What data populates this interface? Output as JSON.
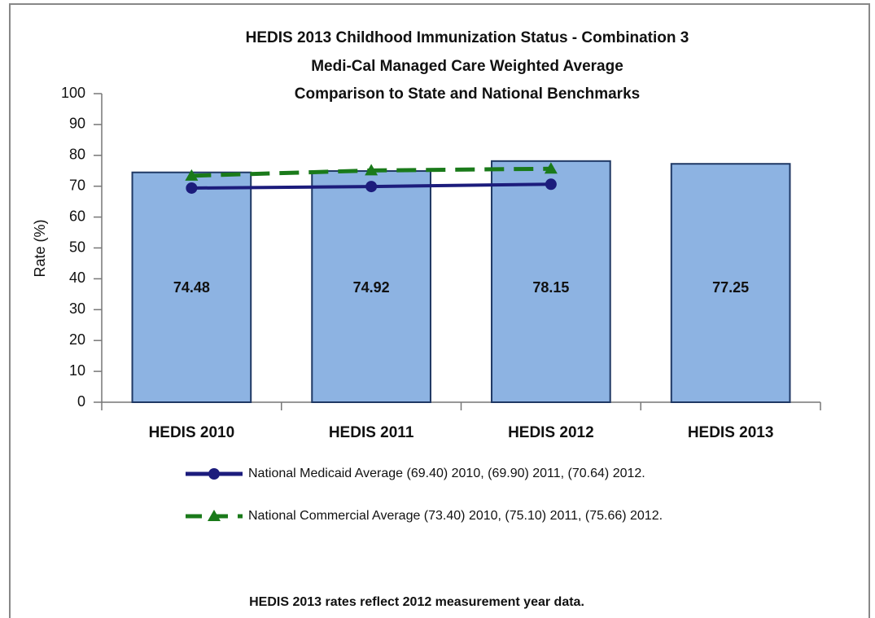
{
  "chart_data": {
    "type": "bar",
    "title": [
      "HEDIS 2013 Childhood Immunization Status - Combination 3",
      "Medi-Cal Managed Care Weighted Average",
      "Comparison to State and National Benchmarks"
    ],
    "y_label": "Rate (%)",
    "categories": [
      "HEDIS 2010",
      "HEDIS 2011",
      "HEDIS 2012",
      "HEDIS 2013"
    ],
    "values": [
      74.48,
      74.92,
      78.15,
      77.25
    ],
    "color": "#8db3e2",
    "series": [
      {
        "name": "National Medicaid Average (69.40) 2010, (69.90) 2011, (70.64) 2012.",
        "color": "#1c1c7c",
        "dash": false,
        "marker": "circle",
        "values": [
          69.4,
          69.9,
          70.64,
          null
        ]
      },
      {
        "name": "National Commercial Average (73.40) 2010, (75.10) 2011, (75.66) 2012.",
        "color": "#1a7a1a",
        "dash": true,
        "marker": "triangle",
        "values": [
          73.4,
          75.1,
          75.66,
          null
        ]
      }
    ],
    "ylim": [
      0,
      100
    ],
    "yticks": [
      0,
      10,
      20,
      30,
      40,
      50,
      60,
      70,
      80,
      90,
      100
    ],
    "grid": false,
    "footnote": "HEDIS 2013 rates reflect 2012 measurement year data."
  }
}
